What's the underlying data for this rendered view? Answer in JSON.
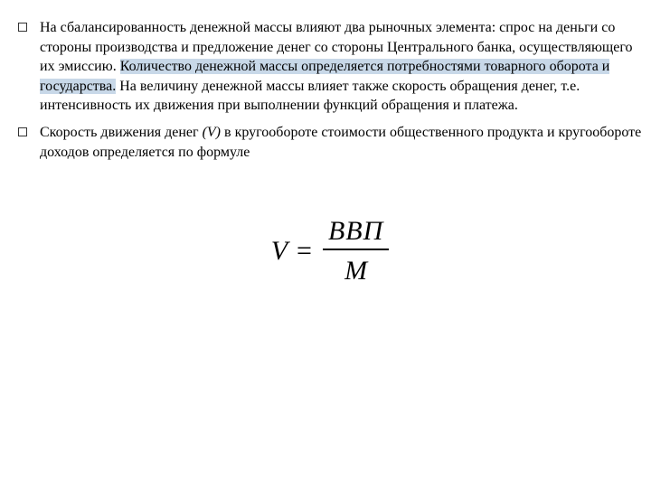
{
  "paragraphs": {
    "p1_part1": "На сбалансированность денежной массы влияют два рыночных элемента: спрос на деньги со стороны производства и предложение денег со стороны Центрального банка, осуществляющего их эмиссию. ",
    "p1_highlight": "Количество денежной массы определяется потребностями товарного оборота и государства.",
    "p1_part3": " На величину денежной массы влияет также скорость обращения денег, т.е. интенсивность их движения при вы­полнении функций обращения и платежа.",
    "p2_part1": "Скорость движения денег ",
    "p2_italic": "(V)",
    "p2_part3": " в кругообороте стоимости обществен­ного продукта и кругообороте доходов определяется по формуле"
  },
  "formula": {
    "var": "V",
    "eq": "=",
    "numerator": "ВВП",
    "denominator": "M"
  },
  "style": {
    "highlight_color": "#c8d8e8",
    "text_color": "#000000",
    "background_color": "#ffffff",
    "body_fontsize": 16,
    "formula_fontsize": 30,
    "font_family_body": "Georgia, Times New Roman, serif",
    "font_family_formula": "Times New Roman, serif"
  }
}
